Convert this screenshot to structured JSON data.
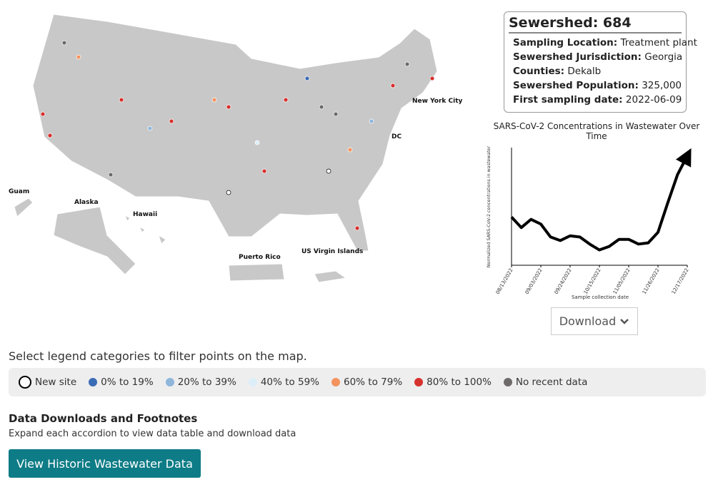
{
  "map": {
    "labels": [
      "Guam",
      "Alaska",
      "Hawaii",
      "Puerto Rico",
      "US Virgin Islands",
      "New York City",
      "DC"
    ]
  },
  "info": {
    "title": "Sewershed: 684",
    "rows": [
      {
        "label": "Sampling Location:",
        "value": "Treatment plant"
      },
      {
        "label": "Sewershed Jurisdiction:",
        "value": "Georgia"
      },
      {
        "label": "Counties:",
        "value": "Dekalb"
      },
      {
        "label": "Sewershed Population:",
        "value": "325,000"
      },
      {
        "label": "First sampling date:",
        "value": "2022-06-09"
      }
    ]
  },
  "chart_data": {
    "type": "line",
    "title": "SARS-CoV-2 Concentrations in Wastewater Over Time",
    "y_label": "Normalized SARS-CoV-2 concentrations in wastewater",
    "x_label": "Sample collection date",
    "categories": [
      "08/13/2022",
      null,
      null,
      "09/03/2022",
      null,
      null,
      "09/24/2022",
      null,
      null,
      "10/15/2022",
      null,
      null,
      "11/05/2022",
      null,
      null,
      "11/26/2022",
      null,
      null,
      "12/17/2022"
    ],
    "values": [
      0.41,
      0.32,
      0.39,
      0.35,
      0.24,
      0.21,
      0.25,
      0.24,
      0.18,
      0.13,
      0.16,
      0.22,
      0.22,
      0.18,
      0.19,
      0.28,
      0.53,
      0.77,
      0.93
    ],
    "color": "#000000",
    "ylim": [
      0,
      1
    ]
  },
  "download": "Download",
  "legend": {
    "instruction": "Select legend categories to filter points on the map.",
    "items": [
      {
        "label": "New site",
        "color": "#ffffff"
      },
      {
        "label": "0% to 19%",
        "color": "#3a6bb5"
      },
      {
        "label": "20% to 39%",
        "color": "#8fb6db"
      },
      {
        "label": "40% to 59%",
        "color": "#dceef7"
      },
      {
        "label": "60% to 79%",
        "color": "#f4935e"
      },
      {
        "label": "80% to 100%",
        "color": "#d7312e"
      },
      {
        "label": "No recent data",
        "color": "#6e6a6a"
      }
    ]
  },
  "footer": {
    "heading": "Data Downloads and Footnotes",
    "subtext": "Expand each accordion to view data table and download data",
    "button": "View Historic Wastewater Data"
  }
}
